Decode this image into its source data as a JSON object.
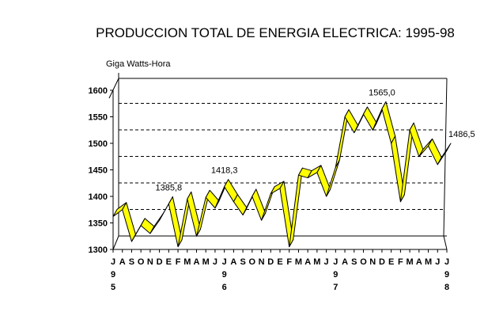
{
  "chart_data": {
    "type": "line",
    "title": "PRODUCCION TOTAL DE ENERGIA ELECTRICA: 1995-98",
    "ylabel": "Giga Watts-Hora",
    "xlabel": "",
    "ylim": [
      1300,
      1600
    ],
    "yticks": [
      "1300",
      "1350",
      "1400",
      "1450",
      "1500",
      "1550",
      "1600"
    ],
    "grid": true,
    "categories": [
      "J",
      "A",
      "S",
      "O",
      "N",
      "D",
      "E",
      "F",
      "M",
      "A",
      "M",
      "J",
      "J",
      "A",
      "S",
      "O",
      "N",
      "D",
      "E",
      "F",
      "M",
      "A",
      "M",
      "J",
      "J",
      "A",
      "S",
      "O",
      "N",
      "D",
      "E",
      "F",
      "M",
      "A",
      "M",
      "J",
      "J"
    ],
    "year_labels": [
      {
        "index": 0,
        "line1": "9",
        "line2": "5"
      },
      {
        "index": 12,
        "line1": "9",
        "line2": "6"
      },
      {
        "index": 24,
        "line1": "9",
        "line2": "7"
      },
      {
        "index": 36,
        "line1": "9",
        "line2": "8"
      }
    ],
    "series": [
      {
        "name": "Produccion",
        "color": "#ffff00",
        "values": [
          1362,
          1375,
          1315,
          1345,
          1330,
          1355,
          1385.8,
          1305,
          1395,
          1325,
          1398,
          1378,
          1418.3,
          1390,
          1365,
          1400,
          1355,
          1405,
          1415,
          1305,
          1440,
          1435,
          1445,
          1400,
          1455,
          1550,
          1520,
          1555,
          1525,
          1565.0,
          1500,
          1390,
          1525,
          1475,
          1495,
          1460,
          1486.5
        ]
      }
    ],
    "data_labels": [
      {
        "index": 6,
        "text": "1385,8"
      },
      {
        "index": 12,
        "text": "1418,3"
      },
      {
        "index": 29,
        "text": "1565,0"
      },
      {
        "index": 36,
        "text": "1486,5"
      }
    ]
  }
}
